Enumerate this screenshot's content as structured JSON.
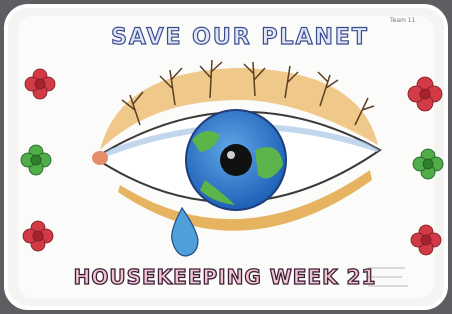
{
  "poster": {
    "title": "SAVE OUR PLANET",
    "team": "Team 11",
    "footer": "HOUSEKEEPING WEEK 21"
  }
}
